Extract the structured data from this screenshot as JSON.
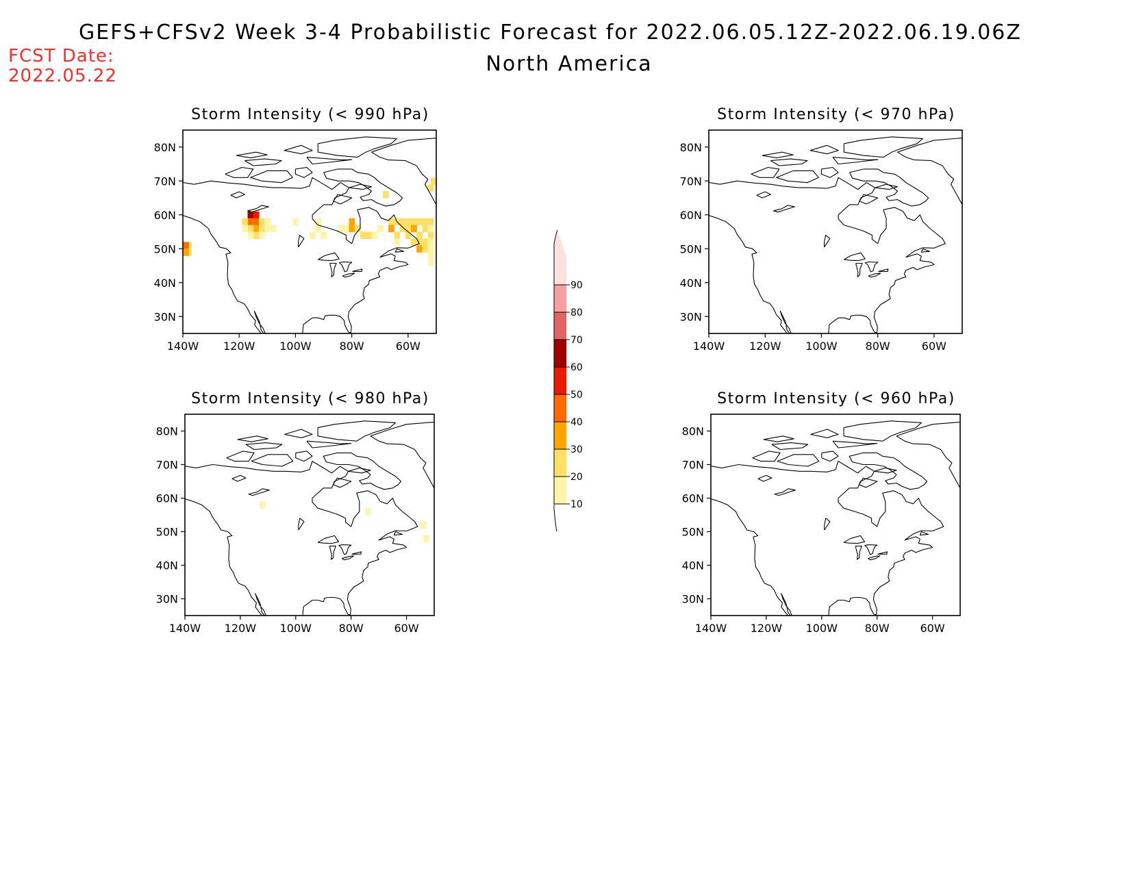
{
  "header": {
    "title": "GEFS+CFSv2 Week 3-4 Probabilistic Forecast for 2022.06.05.12Z-2022.06.19.06Z",
    "subtitle": "North America",
    "fcst_date_label": "FCST Date:",
    "fcst_date_value": "2022.05.22",
    "fcst_color": "#ff2a2a"
  },
  "axes": {
    "lon_ticks": [
      {
        "lon": -140,
        "label": "140W"
      },
      {
        "lon": -120,
        "label": "120W"
      },
      {
        "lon": -100,
        "label": "100W"
      },
      {
        "lon": -80,
        "label": "80W"
      },
      {
        "lon": -60,
        "label": "60W"
      }
    ],
    "lat_ticks": [
      {
        "lat": 80,
        "label": "80N"
      },
      {
        "lat": 70,
        "label": "70N"
      },
      {
        "lat": 60,
        "label": "60N"
      },
      {
        "lat": 50,
        "label": "50N"
      },
      {
        "lat": 40,
        "label": "40N"
      },
      {
        "lat": 30,
        "label": "30N"
      }
    ],
    "lon_range": [
      -140,
      -50
    ],
    "lat_range": [
      25,
      85
    ]
  },
  "colorbar": {
    "levels": [
      10,
      20,
      30,
      40,
      50,
      60,
      70,
      80,
      90
    ],
    "level_labels": [
      "10",
      "20",
      "30",
      "40",
      "50",
      "60",
      "70",
      "80",
      "90"
    ],
    "colors": [
      "#fff5aa",
      "#ffe066",
      "#ffa500",
      "#ff6a00",
      "#e81a00",
      "#a00000",
      "#e06666",
      "#f4a0a0",
      "#fde0e0"
    ]
  },
  "panels": [
    {
      "id": "p990",
      "title": "Storm Intensity (< 990 hPa)",
      "threshold_hpa": 990,
      "probability_cells": [
        {
          "lon": -138,
          "lat": 51,
          "p": 20
        },
        {
          "lon": -138,
          "lat": 49,
          "p": 20
        },
        {
          "lon": -139,
          "lat": 51,
          "p": 40
        },
        {
          "lon": -139,
          "lat": 49,
          "p": 30
        },
        {
          "lon": -116,
          "lat": 60,
          "p": 60
        },
        {
          "lon": -114,
          "lat": 60,
          "p": 50
        },
        {
          "lon": -116,
          "lat": 58,
          "p": 40
        },
        {
          "lon": -114,
          "lat": 58,
          "p": 40
        },
        {
          "lon": -118,
          "lat": 58,
          "p": 20
        },
        {
          "lon": -112,
          "lat": 58,
          "p": 20
        },
        {
          "lon": -114,
          "lat": 56,
          "p": 30
        },
        {
          "lon": -112,
          "lat": 56,
          "p": 20
        },
        {
          "lon": -116,
          "lat": 56,
          "p": 20
        },
        {
          "lon": -118,
          "lat": 56,
          "p": 10
        },
        {
          "lon": -110,
          "lat": 58,
          "p": 10
        },
        {
          "lon": -110,
          "lat": 56,
          "p": 10
        },
        {
          "lon": -114,
          "lat": 54,
          "p": 20
        },
        {
          "lon": -112,
          "lat": 54,
          "p": 10
        },
        {
          "lon": -116,
          "lat": 54,
          "p": 10
        },
        {
          "lon": -108,
          "lat": 56,
          "p": 10
        },
        {
          "lon": -92,
          "lat": 58,
          "p": 10
        },
        {
          "lon": -92,
          "lat": 56,
          "p": 10
        },
        {
          "lon": -94,
          "lat": 54,
          "p": 10
        },
        {
          "lon": -90,
          "lat": 54,
          "p": 10
        },
        {
          "lon": -84,
          "lat": 56,
          "p": 10
        },
        {
          "lon": -82,
          "lat": 56,
          "p": 10
        },
        {
          "lon": -80,
          "lat": 58,
          "p": 30
        },
        {
          "lon": -80,
          "lat": 56,
          "p": 30
        },
        {
          "lon": -78,
          "lat": 56,
          "p": 20
        },
        {
          "lon": -76,
          "lat": 54,
          "p": 20
        },
        {
          "lon": -74,
          "lat": 54,
          "p": 20
        },
        {
          "lon": -72,
          "lat": 54,
          "p": 10
        },
        {
          "lon": -70,
          "lat": 56,
          "p": 10
        },
        {
          "lon": -66,
          "lat": 58,
          "p": 20
        },
        {
          "lon": -64,
          "lat": 58,
          "p": 20
        },
        {
          "lon": -62,
          "lat": 58,
          "p": 20
        },
        {
          "lon": -60,
          "lat": 58,
          "p": 20
        },
        {
          "lon": -58,
          "lat": 58,
          "p": 20
        },
        {
          "lon": -56,
          "lat": 58,
          "p": 20
        },
        {
          "lon": -54,
          "lat": 58,
          "p": 20
        },
        {
          "lon": -52,
          "lat": 58,
          "p": 20
        },
        {
          "lon": -66,
          "lat": 56,
          "p": 30
        },
        {
          "lon": -62,
          "lat": 56,
          "p": 20
        },
        {
          "lon": -60,
          "lat": 56,
          "p": 20
        },
        {
          "lon": -58,
          "lat": 56,
          "p": 30
        },
        {
          "lon": -54,
          "lat": 56,
          "p": 20
        },
        {
          "lon": -52,
          "lat": 56,
          "p": 10
        },
        {
          "lon": -64,
          "lat": 54,
          "p": 20
        },
        {
          "lon": -60,
          "lat": 54,
          "p": 20
        },
        {
          "lon": -56,
          "lat": 54,
          "p": 20
        },
        {
          "lon": -52,
          "lat": 54,
          "p": 20
        },
        {
          "lon": -58,
          "lat": 52,
          "p": 20
        },
        {
          "lon": -56,
          "lat": 52,
          "p": 20
        },
        {
          "lon": -54,
          "lat": 52,
          "p": 20
        },
        {
          "lon": -52,
          "lat": 52,
          "p": 10
        },
        {
          "lon": -56,
          "lat": 50,
          "p": 30
        },
        {
          "lon": -54,
          "lat": 50,
          "p": 20
        },
        {
          "lon": -52,
          "lat": 50,
          "p": 10
        },
        {
          "lon": -52,
          "lat": 48,
          "p": 10
        },
        {
          "lon": -52,
          "lat": 46,
          "p": 10
        },
        {
          "lon": -52,
          "lat": 68,
          "p": 20
        },
        {
          "lon": -51,
          "lat": 70,
          "p": 20
        },
        {
          "lon": -68,
          "lat": 66,
          "p": 20
        },
        {
          "lon": -64,
          "lat": 52,
          "p": 10
        },
        {
          "lon": -100,
          "lat": 58,
          "p": 10
        }
      ]
    },
    {
      "id": "p970",
      "title": "Storm Intensity (< 970 hPa)",
      "threshold_hpa": 970,
      "probability_cells": []
    },
    {
      "id": "p980",
      "title": "Storm Intensity (< 980 hPa)",
      "threshold_hpa": 980,
      "probability_cells": [
        {
          "lon": -112,
          "lat": 58,
          "p": 10
        },
        {
          "lon": -74,
          "lat": 56,
          "p": 10
        },
        {
          "lon": -54,
          "lat": 52,
          "p": 10
        },
        {
          "lon": -53,
          "lat": 48,
          "p": 10
        }
      ]
    },
    {
      "id": "p960",
      "title": "Storm Intensity (< 960 hPa)",
      "threshold_hpa": 960,
      "probability_cells": []
    }
  ]
}
